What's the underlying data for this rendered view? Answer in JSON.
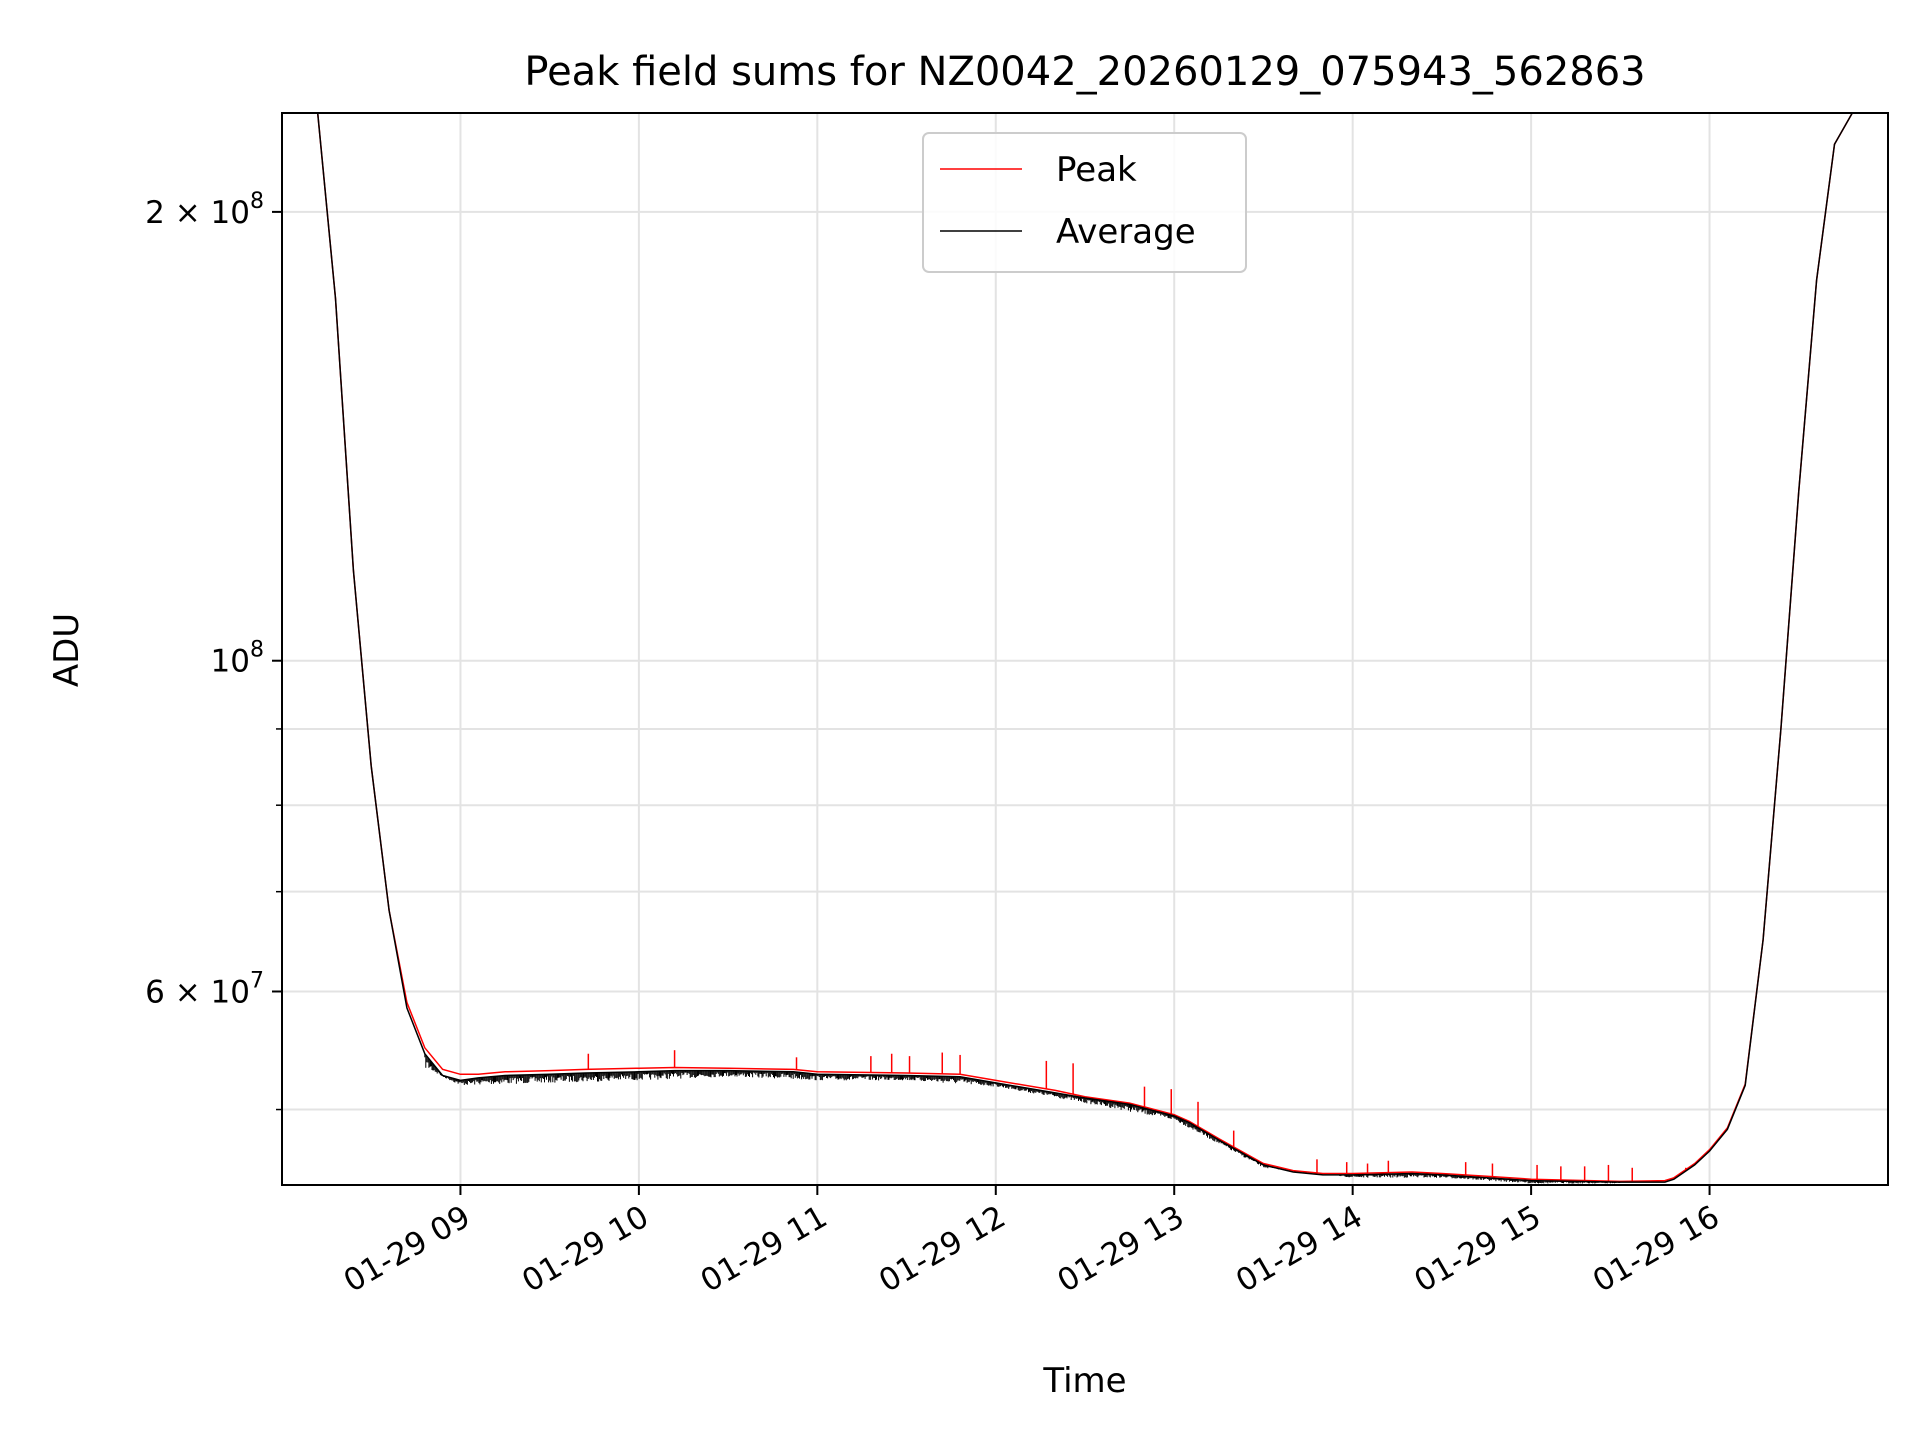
{
  "chart_data": {
    "type": "line",
    "title": "Peak field sums for NZ0042_20260129_075943_562863",
    "xlabel": "Time",
    "ylabel": "ADU",
    "x_scale": "time",
    "y_scale": "log",
    "xlim": [
      "2026-01-29 08:00",
      "2026-01-29 17:00"
    ],
    "ylim": [
      44500000,
      233000000
    ],
    "x_ticks": [
      {
        "value": "2026-01-29 09:00",
        "label": "01-29 09"
      },
      {
        "value": "2026-01-29 10:00",
        "label": "01-29 10"
      },
      {
        "value": "2026-01-29 11:00",
        "label": "01-29 11"
      },
      {
        "value": "2026-01-29 12:00",
        "label": "01-29 12"
      },
      {
        "value": "2026-01-29 13:00",
        "label": "01-29 13"
      },
      {
        "value": "2026-01-29 14:00",
        "label": "01-29 14"
      },
      {
        "value": "2026-01-29 15:00",
        "label": "01-29 15"
      },
      {
        "value": "2026-01-29 16:00",
        "label": "01-29 16"
      }
    ],
    "y_ticks": [
      {
        "value": 200000000,
        "label_base": "2 × 10",
        "label_exp": "8"
      },
      {
        "value": 100000000,
        "label_base": "10",
        "label_exp": "8"
      },
      {
        "value": 60000000,
        "label_base": "6 × 10",
        "label_exp": "7"
      }
    ],
    "y_minor_ticks": [
      50000000,
      70000000,
      80000000,
      90000000
    ],
    "grid": true,
    "legend": {
      "position": "upper center"
    },
    "series": [
      {
        "name": "Peak",
        "color": "#ff0000",
        "x": [
          "2026-01-29 08:00",
          "2026-01-29 08:12",
          "2026-01-29 08:18",
          "2026-01-29 08:24",
          "2026-01-29 08:30",
          "2026-01-29 08:36",
          "2026-01-29 08:42",
          "2026-01-29 08:48",
          "2026-01-29 08:54",
          "2026-01-29 09:00",
          "2026-01-29 09:06",
          "2026-01-29 09:15",
          "2026-01-29 09:30",
          "2026-01-29 09:42",
          "2026-01-29 10:00",
          "2026-01-29 10:12",
          "2026-01-29 10:30",
          "2026-01-29 10:52",
          "2026-01-29 11:00",
          "2026-01-29 11:30",
          "2026-01-29 11:48",
          "2026-01-29 12:00",
          "2026-01-29 12:20",
          "2026-01-29 12:30",
          "2026-01-29 12:45",
          "2026-01-29 13:00",
          "2026-01-29 13:05",
          "2026-01-29 13:15",
          "2026-01-29 13:30",
          "2026-01-29 13:40",
          "2026-01-29 13:50",
          "2026-01-29 14:00",
          "2026-01-29 14:20",
          "2026-01-29 14:30",
          "2026-01-29 14:45",
          "2026-01-29 15:00",
          "2026-01-29 15:30",
          "2026-01-29 15:45",
          "2026-01-29 15:48",
          "2026-01-29 15:55",
          "2026-01-29 16:00",
          "2026-01-29 16:06",
          "2026-01-29 16:12",
          "2026-01-29 16:18",
          "2026-01-29 16:24",
          "2026-01-29 16:30",
          "2026-01-29 16:36",
          "2026-01-29 16:42",
          "2026-01-29 16:48",
          "2026-01-29 17:00"
        ],
        "y": [
          233000000,
          233000000,
          175000000,
          115000000,
          85000000,
          68000000,
          59000000,
          55000000,
          53200000,
          52800000,
          52800000,
          53000000,
          53100000,
          53200000,
          53300000,
          53350000,
          53300000,
          53200000,
          53000000,
          52900000,
          52800000,
          52300000,
          51500000,
          51000000,
          50500000,
          49600000,
          49100000,
          47800000,
          46000000,
          45500000,
          45300000,
          45300000,
          45400000,
          45300000,
          45100000,
          44900000,
          44750000,
          44800000,
          45000000,
          46000000,
          47000000,
          48600000,
          52000000,
          65000000,
          90000000,
          130000000,
          180000000,
          222000000,
          233000000,
          233000000
        ],
        "spikes": [
          {
            "x": "2026-01-29 09:43",
            "y": 54500000
          },
          {
            "x": "2026-01-29 10:12",
            "y": 54800000
          },
          {
            "x": "2026-01-29 10:53",
            "y": 54200000
          },
          {
            "x": "2026-01-29 11:18",
            "y": 54300000
          },
          {
            "x": "2026-01-29 11:25",
            "y": 54500000
          },
          {
            "x": "2026-01-29 11:31",
            "y": 54300000
          },
          {
            "x": "2026-01-29 11:42",
            "y": 54600000
          },
          {
            "x": "2026-01-29 11:48",
            "y": 54400000
          },
          {
            "x": "2026-01-29 12:17",
            "y": 53900000
          },
          {
            "x": "2026-01-29 12:26",
            "y": 53700000
          },
          {
            "x": "2026-01-29 12:50",
            "y": 51800000
          },
          {
            "x": "2026-01-29 12:59",
            "y": 51600000
          },
          {
            "x": "2026-01-29 13:08",
            "y": 50600000
          },
          {
            "x": "2026-01-29 13:20",
            "y": 48400000
          },
          {
            "x": "2026-01-29 13:48",
            "y": 46300000
          },
          {
            "x": "2026-01-29 13:58",
            "y": 46100000
          },
          {
            "x": "2026-01-29 14:05",
            "y": 46000000
          },
          {
            "x": "2026-01-29 14:12",
            "y": 46200000
          },
          {
            "x": "2026-01-29 14:38",
            "y": 46100000
          },
          {
            "x": "2026-01-29 14:47",
            "y": 46000000
          },
          {
            "x": "2026-01-29 15:02",
            "y": 45900000
          },
          {
            "x": "2026-01-29 15:10",
            "y": 45800000
          },
          {
            "x": "2026-01-29 15:18",
            "y": 45800000
          },
          {
            "x": "2026-01-29 15:26",
            "y": 45900000
          },
          {
            "x": "2026-01-29 15:34",
            "y": 45700000
          },
          {
            "x": "2026-01-29 15:52",
            "y": 45700000
          }
        ]
      },
      {
        "name": "Average",
        "color": "#000000",
        "x": [
          "2026-01-29 08:00",
          "2026-01-29 08:12",
          "2026-01-29 08:18",
          "2026-01-29 08:24",
          "2026-01-29 08:30",
          "2026-01-29 08:36",
          "2026-01-29 08:42",
          "2026-01-29 08:48",
          "2026-01-29 08:54",
          "2026-01-29 09:00",
          "2026-01-29 09:06",
          "2026-01-29 09:15",
          "2026-01-29 09:30",
          "2026-01-29 09:42",
          "2026-01-29 10:00",
          "2026-01-29 10:12",
          "2026-01-29 10:30",
          "2026-01-29 10:52",
          "2026-01-29 11:00",
          "2026-01-29 11:30",
          "2026-01-29 11:48",
          "2026-01-29 12:00",
          "2026-01-29 12:20",
          "2026-01-29 12:30",
          "2026-01-29 12:45",
          "2026-01-29 13:00",
          "2026-01-29 13:05",
          "2026-01-29 13:15",
          "2026-01-29 13:30",
          "2026-01-29 13:40",
          "2026-01-29 13:50",
          "2026-01-29 14:00",
          "2026-01-29 14:20",
          "2026-01-29 14:30",
          "2026-01-29 14:45",
          "2026-01-29 15:00",
          "2026-01-29 15:30",
          "2026-01-29 15:45",
          "2026-01-29 15:48",
          "2026-01-29 15:55",
          "2026-01-29 16:00",
          "2026-01-29 16:06",
          "2026-01-29 16:12",
          "2026-01-29 16:18",
          "2026-01-29 16:24",
          "2026-01-29 16:30",
          "2026-01-29 16:36",
          "2026-01-29 16:42",
          "2026-01-29 16:48",
          "2026-01-29 17:00"
        ],
        "y": [
          233000000,
          233000000,
          175000000,
          115000000,
          85000000,
          68000000,
          58500000,
          54500000,
          52700000,
          52300000,
          52500000,
          52700000,
          52800000,
          52900000,
          53000000,
          53100000,
          53100000,
          53000000,
          52800000,
          52700000,
          52600000,
          52100000,
          51300000,
          50900000,
          50400000,
          49500000,
          49000000,
          47700000,
          45900000,
          45400000,
          45200000,
          45200000,
          45300000,
          45200000,
          45000000,
          44800000,
          44700000,
          44700000,
          44900000,
          45900000,
          46900000,
          48500000,
          51900000,
          65000000,
          90000000,
          130000000,
          180000000,
          222000000,
          233000000,
          233000000
        ],
        "noise_band": [
          {
            "x": "2026-01-29 08:48",
            "low": 53300000
          },
          {
            "x": "2026-01-29 09:00",
            "low": 51900000
          },
          {
            "x": "2026-01-29 09:30",
            "low": 52100000
          },
          {
            "x": "2026-01-29 10:00",
            "low": 52300000
          },
          {
            "x": "2026-01-29 10:30",
            "low": 52600000
          },
          {
            "x": "2026-01-29 11:00",
            "low": 52300000
          },
          {
            "x": "2026-01-29 11:30",
            "low": 52300000
          },
          {
            "x": "2026-01-29 12:00",
            "low": 51800000
          },
          {
            "x": "2026-01-29 12:30",
            "low": 50500000
          },
          {
            "x": "2026-01-29 13:00",
            "low": 49200000
          },
          {
            "x": "2026-01-29 13:30",
            "low": 45700000
          },
          {
            "x": "2026-01-29 14:00",
            "low": 45000000
          },
          {
            "x": "2026-01-29 14:30",
            "low": 45000000
          },
          {
            "x": "2026-01-29 15:00",
            "low": 44600000
          },
          {
            "x": "2026-01-29 15:30",
            "low": 44600000
          }
        ]
      }
    ]
  }
}
